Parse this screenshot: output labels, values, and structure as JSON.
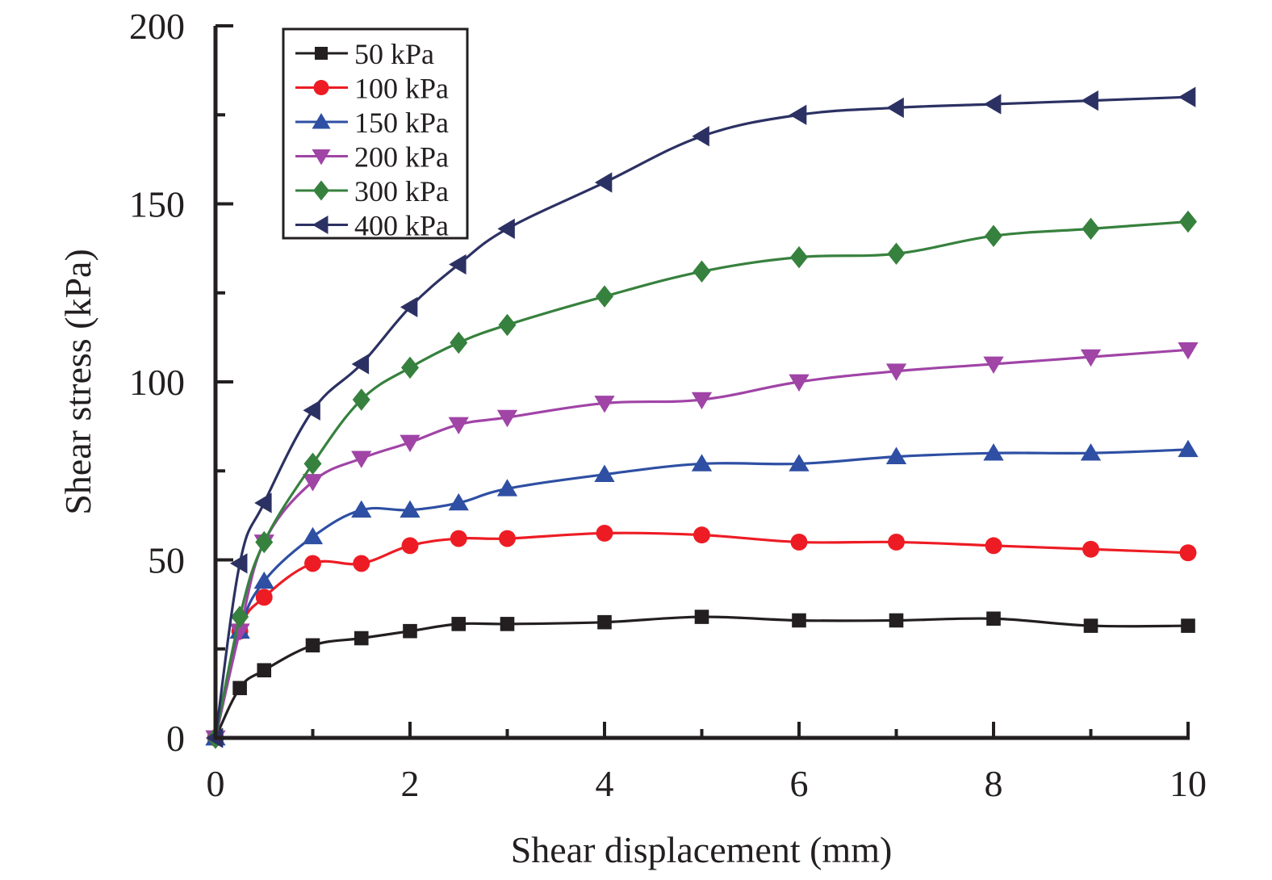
{
  "chart_data": {
    "type": "line",
    "title": "",
    "xlabel": "Shear displacement (mm)",
    "ylabel": "Shear stress (kPa)",
    "xlim": [
      0,
      10
    ],
    "ylim": [
      0,
      200
    ],
    "xticks": [
      0,
      2,
      4,
      6,
      8,
      10
    ],
    "xminor": [
      1,
      3,
      5,
      7,
      9
    ],
    "yticks": [
      0,
      50,
      100,
      150,
      200
    ],
    "yminor": [
      25,
      75,
      125,
      175
    ],
    "grid": false,
    "legend_position": "top-left",
    "x": [
      0,
      0.25,
      0.5,
      1,
      1.5,
      2,
      2.5,
      3,
      4,
      5,
      6,
      7,
      8,
      9,
      10
    ],
    "series": [
      {
        "name": "50 kPa",
        "color": "#231f20",
        "marker": "square",
        "values": [
          0,
          14,
          19,
          26,
          28,
          30,
          32,
          32,
          32.5,
          34,
          33,
          33,
          33.5,
          31.5,
          31.5
        ]
      },
      {
        "name": "100 kPa",
        "color": "#ed1c24",
        "marker": "circle",
        "values": [
          0,
          30,
          39.5,
          49,
          49,
          54,
          56,
          56,
          57.5,
          57,
          55,
          55,
          54,
          53,
          52
        ]
      },
      {
        "name": "150 kPa",
        "color": "#2e4fa3",
        "marker": "triangle-up",
        "values": [
          0,
          30,
          44,
          56.5,
          64,
          64,
          66,
          70,
          74,
          77,
          77,
          79,
          80,
          80,
          81
        ]
      },
      {
        "name": "200 kPa",
        "color": "#a044a6",
        "marker": "triangle-down",
        "values": [
          0,
          30,
          55,
          72,
          78.5,
          83,
          88,
          90,
          94,
          95,
          100,
          103,
          105,
          107,
          109
        ]
      },
      {
        "name": "300 kPa",
        "color": "#37813e",
        "marker": "diamond",
        "values": [
          0,
          34,
          55,
          77,
          95,
          104,
          111,
          116,
          124,
          131,
          135,
          136,
          141,
          143,
          145
        ]
      },
      {
        "name": "400 kPa",
        "color": "#2c3163",
        "marker": "triangle-left",
        "values": [
          0,
          49,
          66,
          92,
          105,
          121,
          133,
          143,
          156,
          169,
          175,
          177,
          178,
          179,
          180
        ]
      }
    ]
  }
}
